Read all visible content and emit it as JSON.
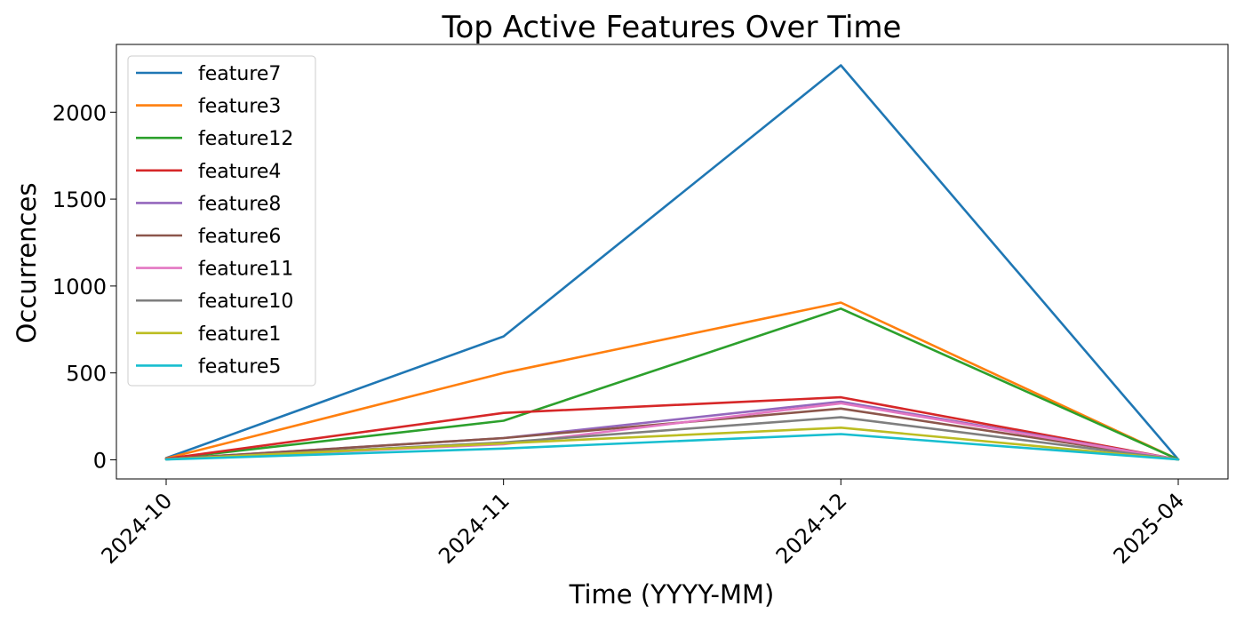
{
  "chart_data": {
    "type": "line",
    "title": "Top Active Features Over Time",
    "xlabel": "Time (YYYY-MM)",
    "ylabel": "Occurrences",
    "categories": [
      "2024-10",
      "2024-11",
      "2024-12",
      "2025-04"
    ],
    "ylim": [
      -110,
      2390
    ],
    "yticks": [
      0,
      500,
      1000,
      1500,
      2000
    ],
    "grid": false,
    "legend_position": "upper-left",
    "series": [
      {
        "name": "feature7",
        "color": "#1f77b4",
        "values": [
          10,
          710,
          2270,
          2
        ]
      },
      {
        "name": "feature3",
        "color": "#ff7f0e",
        "values": [
          8,
          500,
          905,
          2
        ]
      },
      {
        "name": "feature12",
        "color": "#2ca02c",
        "values": [
          5,
          225,
          870,
          2
        ]
      },
      {
        "name": "feature4",
        "color": "#d62728",
        "values": [
          6,
          270,
          360,
          2
        ]
      },
      {
        "name": "feature8",
        "color": "#9467bd",
        "values": [
          4,
          125,
          335,
          2
        ]
      },
      {
        "name": "feature6",
        "color": "#8c564b",
        "values": [
          4,
          125,
          295,
          2
        ]
      },
      {
        "name": "feature11",
        "color": "#e377c2",
        "values": [
          3,
          90,
          325,
          2
        ]
      },
      {
        "name": "feature10",
        "color": "#7f7f7f",
        "values": [
          3,
          100,
          245,
          2
        ]
      },
      {
        "name": "feature1",
        "color": "#bcbd22",
        "values": [
          3,
          95,
          185,
          2
        ]
      },
      {
        "name": "feature5",
        "color": "#17becf",
        "values": [
          2,
          65,
          148,
          2
        ]
      }
    ]
  }
}
